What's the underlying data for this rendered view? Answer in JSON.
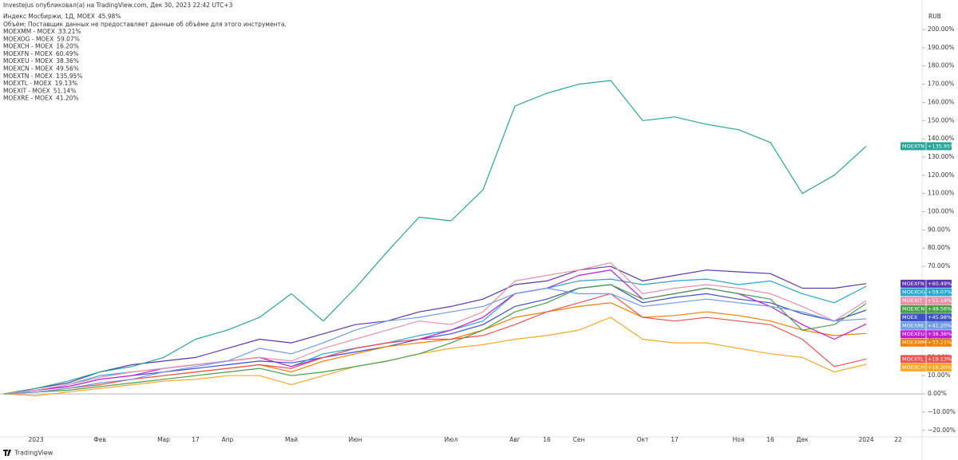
{
  "header": {
    "author_line": "Investejus опубликовал(а) на TradingView.com, Дек 30, 2023 22:42 UTC+3",
    "volume_note": "Объём: Поставщик данных не предоставляет данные об объёме для этого инструмента.",
    "currency": "RUB",
    "brand": "TradingView"
  },
  "chart_data": {
    "type": "line",
    "categories": [
      null,
      "2023",
      null,
      "Фев",
      null,
      "Мар",
      "17",
      "Апр",
      null,
      "Май",
      null,
      "Июн",
      null,
      null,
      "Июл",
      null,
      "Авг",
      "16",
      "Сен",
      null,
      "Окт",
      "17",
      null,
      "Ноя",
      "16",
      "Дек",
      null,
      "2024",
      "22"
    ],
    "ylim": [
      -23.6,
      216.2
    ],
    "yticks": [
      {
        "value": -20,
        "label": "−20.00%"
      },
      {
        "value": -10,
        "label": "−10.00%"
      },
      {
        "value": 0,
        "label": "0.00%"
      },
      {
        "value": 10,
        "label": "10.00%"
      },
      {
        "value": 20,
        "label": "20.00%"
      },
      {
        "value": 30,
        "label": "30.00%"
      },
      {
        "value": 40,
        "label": "40.00%"
      },
      {
        "value": 50,
        "label": "50.00%"
      },
      {
        "value": 60,
        "label": "60.00%"
      },
      {
        "value": 70,
        "label": "70.00%"
      },
      {
        "value": 80,
        "label": "80.00%"
      },
      {
        "value": 90,
        "label": "90.00%"
      },
      {
        "value": 100,
        "label": "100.00%"
      },
      {
        "value": 110,
        "label": "110.00%"
      },
      {
        "value": 120,
        "label": "120.00%"
      },
      {
        "value": 130,
        "label": "130.00%"
      },
      {
        "value": 140,
        "label": "140.00%"
      },
      {
        "value": 150,
        "label": "150.00%"
      },
      {
        "value": 160,
        "label": "160.00%"
      },
      {
        "value": 170,
        "label": "170.00%"
      },
      {
        "value": 180,
        "label": "180.00%"
      },
      {
        "value": 190,
        "label": "190.00%"
      },
      {
        "value": 200,
        "label": "200.00%"
      }
    ],
    "series": [
      {
        "name": "Индекс Мосбиржи, 1Д, MOEX",
        "tag": "MOEX",
        "legend_value": "45.98%",
        "end_label": "+45.98%",
        "color": "#3f51c8",
        "values": [
          0,
          2,
          4,
          8,
          10,
          12,
          14,
          16,
          18,
          17,
          20,
          23,
          26,
          30,
          33,
          38,
          48,
          52,
          58,
          60,
          50,
          53,
          55,
          52,
          50,
          44,
          40,
          45.98,
          null
        ]
      },
      {
        "name": "MOEXMM - MOEX",
        "tag": "MOEXMM",
        "legend_value": "33.21%",
        "end_label": "+33.21%",
        "color": "#f57c00",
        "values": [
          0,
          1,
          3,
          6,
          8,
          10,
          12,
          14,
          16,
          12,
          18,
          22,
          26,
          28,
          30,
          35,
          42,
          45,
          48,
          50,
          42,
          43,
          45,
          43,
          40,
          35,
          32,
          33.21,
          null
        ]
      },
      {
        "name": "MOEXOG - MOEX",
        "tag": "MOEXOG",
        "legend_value": "59.07%",
        "end_label": "+59.07%",
        "color": "#26a6d1",
        "values": [
          0,
          2,
          5,
          10,
          12,
          14,
          16,
          18,
          20,
          15,
          22,
          25,
          28,
          32,
          35,
          40,
          55,
          58,
          62,
          63,
          60,
          62,
          63,
          60,
          62,
          55,
          50,
          59.07,
          null
        ]
      },
      {
        "name": "MOEXCH - MOEX",
        "tag": "MOEXCH",
        "legend_value": "16.20%",
        "end_label": "+16.20%",
        "color": "#f9a825",
        "values": [
          0,
          -1,
          1,
          3,
          5,
          7,
          8,
          10,
          10,
          5,
          10,
          15,
          18,
          22,
          25,
          27,
          30,
          32,
          35,
          42,
          30,
          28,
          28,
          25,
          22,
          20,
          12,
          16.2,
          null
        ]
      },
      {
        "name": "MOEXFN - MOEX",
        "tag": "MOEXFN",
        "legend_value": "60.49%",
        "end_label": "+60.49%",
        "color": "#5e35b1",
        "values": [
          0,
          3,
          6,
          12,
          16,
          18,
          20,
          25,
          30,
          28,
          33,
          38,
          40,
          45,
          48,
          52,
          60,
          62,
          68,
          70,
          62,
          65,
          68,
          67,
          66,
          58,
          58,
          60.49,
          null
        ]
      },
      {
        "name": "MOEXEU - MOEX",
        "tag": "MOEXEU",
        "legend_value": "38.36%",
        "end_label": "+38.36%",
        "color": "#c218e0",
        "values": [
          0,
          2,
          4,
          8,
          10,
          14,
          16,
          18,
          20,
          15,
          20,
          25,
          28,
          30,
          35,
          42,
          55,
          58,
          65,
          68,
          52,
          55,
          58,
          55,
          48,
          38,
          30,
          38.36,
          null
        ]
      },
      {
        "name": "MOEXCN - MOEX",
        "tag": "MOEXCN",
        "legend_value": "49.56%",
        "end_label": "+49.56%",
        "color": "#43a047",
        "values": [
          0,
          1,
          2,
          4,
          6,
          8,
          10,
          12,
          14,
          10,
          12,
          15,
          18,
          22,
          28,
          35,
          45,
          50,
          58,
          60,
          52,
          55,
          58,
          55,
          52,
          35,
          38,
          49.56,
          null
        ]
      },
      {
        "name": "MOEXTN - MOEX",
        "tag": "MOEXTN",
        "legend_value": "135.95%",
        "end_label": "+135.95%",
        "color": "#26a69a",
        "values": [
          0,
          3,
          7,
          12,
          15,
          20,
          30,
          35,
          42,
          55,
          40,
          58,
          78,
          97,
          95,
          112,
          158,
          165,
          170,
          172,
          150,
          152,
          148,
          145,
          138,
          110,
          120,
          135.95,
          null
        ]
      },
      {
        "name": "MOEXTL - MOEX",
        "tag": "MOEXTL",
        "legend_value": "19.13%",
        "end_label": "+19.13%",
        "color": "#ef5350",
        "values": [
          0,
          1,
          3,
          5,
          8,
          10,
          12,
          14,
          16,
          14,
          20,
          25,
          28,
          30,
          30,
          32,
          38,
          45,
          50,
          55,
          42,
          40,
          42,
          40,
          38,
          30,
          15,
          19.13,
          null
        ]
      },
      {
        "name": "MOEXIT - MOEX",
        "tag": "MOEXIT",
        "legend_value": "51.14%",
        "end_label": "+51.14%",
        "color": "#e991a8",
        "values": [
          0,
          2,
          5,
          9,
          12,
          14,
          16,
          18,
          20,
          18,
          25,
          30,
          35,
          40,
          38,
          45,
          62,
          65,
          68,
          72,
          55,
          58,
          60,
          58,
          55,
          48,
          40,
          51.14,
          null
        ]
      },
      {
        "name": "MOEXRE - MOEX",
        "tag": "MOEXRE",
        "legend_value": "41.20%",
        "end_label": "+41.20%",
        "color": "#6c9ee8",
        "values": [
          0,
          1,
          3,
          6,
          8,
          12,
          15,
          18,
          25,
          22,
          28,
          35,
          40,
          42,
          45,
          48,
          55,
          58,
          55,
          55,
          48,
          50,
          52,
          50,
          48,
          45,
          40,
          41.2,
          null
        ]
      }
    ]
  }
}
